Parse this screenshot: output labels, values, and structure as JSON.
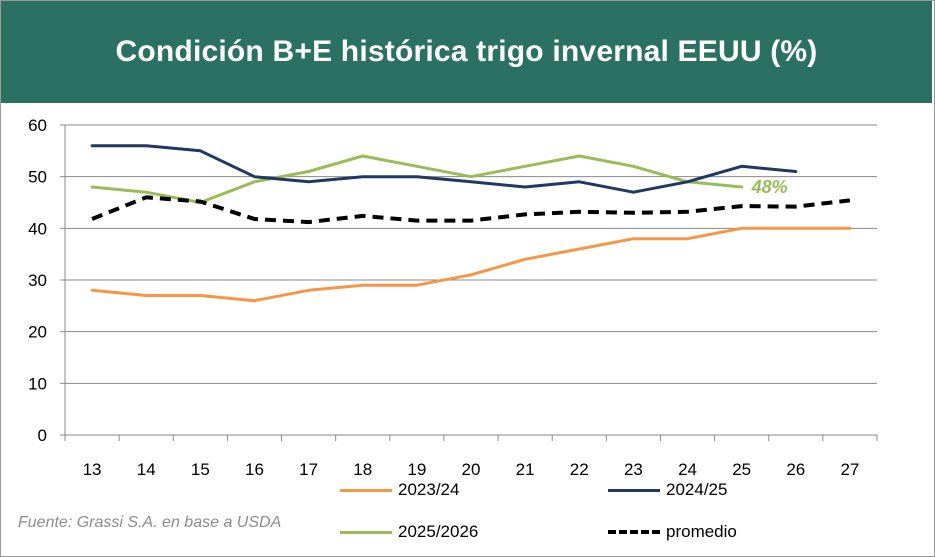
{
  "chart_data": {
    "type": "line",
    "title": "Condición B+E histórica trigo invernal EEUU (%)",
    "x": [
      "13",
      "14",
      "15",
      "16",
      "17",
      "18",
      "19",
      "20",
      "21",
      "22",
      "23",
      "24",
      "25",
      "26",
      "27"
    ],
    "ylim": [
      0,
      60
    ],
    "yticks": [
      0,
      10,
      20,
      30,
      40,
      50,
      60
    ],
    "grid": true,
    "legend_position": "bottom",
    "series": [
      {
        "name": "2023/24",
        "color": "#f79646",
        "dash": false,
        "values": [
          28,
          27,
          27,
          26,
          28,
          29,
          29,
          31,
          34,
          36,
          38,
          38,
          40,
          40,
          40
        ]
      },
      {
        "name": "2024/25",
        "color": "#1f3864",
        "dash": false,
        "values": [
          56,
          56,
          55,
          50,
          49,
          50,
          50,
          49,
          48,
          49,
          47,
          49,
          52,
          51,
          null
        ]
      },
      {
        "name": "2025/2026",
        "color": "#9bbb59",
        "dash": false,
        "values": [
          48,
          47,
          45,
          49,
          51,
          54,
          52,
          50,
          52,
          54,
          52,
          49,
          48,
          null,
          null
        ]
      },
      {
        "name": "promedio",
        "color": "#000000",
        "dash": true,
        "values": [
          41.8,
          46,
          45.2,
          41.8,
          41.2,
          42.4,
          41.5,
          41.5,
          42.7,
          43.2,
          43,
          43.2,
          44.3,
          44.2,
          45.4
        ]
      }
    ],
    "annotations": [
      {
        "text": "48%",
        "x": "25",
        "y": 48,
        "color": "#9bbb59"
      }
    ],
    "source": "Fuente: Grassi S.A. en base a USDA"
  }
}
